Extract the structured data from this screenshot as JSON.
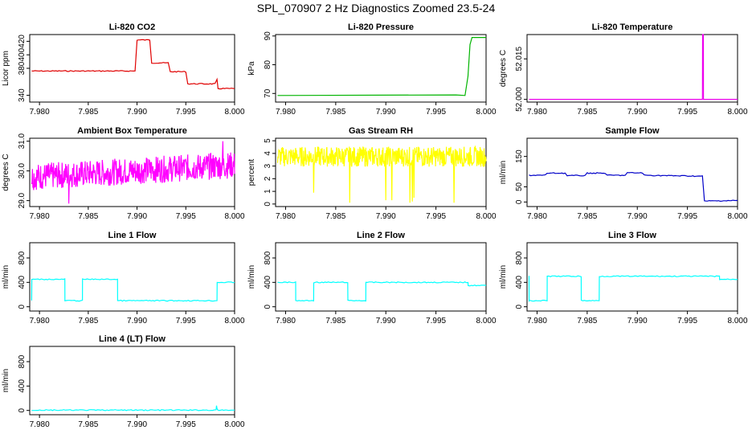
{
  "figure_title": "SPL_070907  2 Hz Diagnostics Zoomed 23.5-24",
  "colors": {
    "co2": "#e00000",
    "pressure": "#00b400",
    "temperature": "#ee00ee",
    "ambient": "#ff00ff",
    "rh": "#ffff00",
    "sample": "#0000c8",
    "lines": "#00ffff"
  },
  "chart_data": [
    {
      "type": "line",
      "title": "Li-820 CO2",
      "ylabel": "Licor ppm",
      "color": "#e00000",
      "xlim": [
        7.979,
        8.0
      ],
      "ylim": [
        330,
        430
      ],
      "xticks": [
        "7.980",
        "7.985",
        "7.990",
        "7.995",
        "8.000"
      ],
      "yticks": [
        "340",
        "380",
        "400",
        "420"
      ],
      "ytick_values": [
        340,
        380,
        400,
        420
      ],
      "series": [
        {
          "x": [
            7.9792,
            7.9898,
            7.99,
            7.9913,
            7.9915,
            7.9932,
            7.9934,
            7.995,
            7.9952,
            7.998,
            7.9981,
            7.9982,
            7.9983,
            8.0
          ],
          "y": [
            376,
            376,
            422,
            422,
            388,
            388,
            375,
            375,
            357,
            357,
            360,
            363,
            350,
            350
          ]
        }
      ]
    },
    {
      "type": "line",
      "title": "Li-820 Pressure",
      "ylabel": "kPa",
      "color": "#00b400",
      "xlim": [
        7.979,
        8.0
      ],
      "ylim": [
        67,
        90.5
      ],
      "xticks": [
        "7.980",
        "7.985",
        "7.990",
        "7.995",
        "8.000"
      ],
      "yticks": [
        "70",
        "80",
        "90"
      ],
      "ytick_values": [
        70,
        80,
        90
      ],
      "series": [
        {
          "x": [
            7.9792,
            7.997,
            7.9979,
            7.9982,
            7.9984,
            7.9986,
            8.0
          ],
          "y": [
            69.3,
            69.5,
            69.3,
            76,
            87,
            89.5,
            89.5
          ]
        }
      ]
    },
    {
      "type": "line",
      "title": "Li-820 Temperature",
      "ylabel": "degrees C",
      "color": "#ee00ee",
      "xlim": [
        7.979,
        8.0
      ],
      "ylim": [
        51.999,
        52.024
      ],
      "xticks": [
        "7.980",
        "7.985",
        "7.990",
        "7.995",
        "8.000"
      ],
      "yticks": [
        "52.000",
        "52.015"
      ],
      "ytick_values": [
        52.0,
        52.015
      ],
      "series": [
        {
          "x": [
            7.9792,
            7.9965,
            7.99651,
            7.99659,
            7.9966,
            8.0
          ],
          "y": [
            52.0,
            52.0,
            52.024,
            52.024,
            52.0,
            52.0
          ]
        }
      ]
    },
    {
      "type": "line",
      "title": "Ambient Box Temperature",
      "ylabel": "degrees C",
      "color": "#ff00ff",
      "xlim": [
        7.979,
        8.0
      ],
      "ylim": [
        28.8,
        31.1
      ],
      "xticks": [
        "7.980",
        "7.985",
        "7.990",
        "7.995",
        "8.000"
      ],
      "yticks": [
        "29.0",
        "30.0",
        "31.0"
      ],
      "ytick_values": [
        29.0,
        30.0,
        31.0
      ],
      "series": [
        {
          "x": [
            7.9792,
            7.985,
            7.99,
            7.995,
            8.0
          ],
          "y": [
            29.8,
            29.9,
            30.0,
            30.1,
            30.2
          ]
        }
      ]
    },
    {
      "type": "line",
      "title": "Gas Stream RH",
      "ylabel": "percent",
      "color": "#ffff00",
      "xlim": [
        7.979,
        8.0
      ],
      "ylim": [
        -0.2,
        5.2
      ],
      "xticks": [
        "7.980",
        "7.985",
        "7.990",
        "7.995",
        "8.000"
      ],
      "yticks": [
        "0",
        "1",
        "2",
        "3",
        "4",
        "5"
      ],
      "ytick_values": [
        0,
        1,
        2,
        3,
        4,
        5
      ],
      "series": [
        {
          "x": [
            7.9792,
            7.985,
            7.99,
            7.995,
            8.0
          ],
          "y": [
            3.7,
            3.7,
            3.7,
            3.7,
            3.8
          ]
        }
      ]
    },
    {
      "type": "line",
      "title": "Sample Flow",
      "ylabel": "ml/min",
      "color": "#0000c8",
      "xlim": [
        7.979,
        8.0
      ],
      "ylim": [
        -15,
        210
      ],
      "xticks": [
        "7.980",
        "7.985",
        "7.990",
        "7.995",
        "8.000"
      ],
      "yticks": [
        "0",
        "50",
        "150"
      ],
      "ytick_values": [
        0,
        50,
        150
      ],
      "series": [
        {
          "x": [
            7.9792,
            7.9808,
            7.981,
            7.9828,
            7.983,
            7.9848,
            7.985,
            7.9868,
            7.987,
            7.9888,
            7.989,
            7.9905,
            7.9907,
            7.9965,
            7.9967,
            8.0
          ],
          "y": [
            88,
            88,
            95,
            95,
            87,
            87,
            95,
            95,
            88,
            88,
            96,
            96,
            88,
            85,
            3,
            5
          ]
        }
      ]
    },
    {
      "type": "line",
      "title": "Line 1 Flow",
      "ylabel": "ml/min",
      "color": "#00ffff",
      "xlim": [
        7.979,
        8.0
      ],
      "ylim": [
        -70,
        1050
      ],
      "xticks": [
        "7.980",
        "7.985",
        "7.990",
        "7.995",
        "8.000"
      ],
      "yticks": [
        "0",
        "400",
        "800"
      ],
      "ytick_values": [
        0,
        400,
        800
      ],
      "series": [
        {
          "x": [
            7.9792,
            7.97921,
            7.9826,
            7.98261,
            7.9844,
            7.98441,
            7.988,
            7.98801,
            7.9982,
            7.99821,
            8.0
          ],
          "y": [
            100,
            450,
            450,
            100,
            100,
            450,
            450,
            100,
            100,
            400,
            400
          ]
        }
      ]
    },
    {
      "type": "line",
      "title": "Line 2 Flow",
      "ylabel": "ml/min",
      "color": "#00ffff",
      "xlim": [
        7.979,
        8.0
      ],
      "ylim": [
        -70,
        1050
      ],
      "xticks": [
        "7.980",
        "7.985",
        "7.990",
        "7.995",
        "8.000"
      ],
      "yticks": [
        "0",
        "400",
        "800"
      ],
      "ytick_values": [
        0,
        400,
        800
      ],
      "series": [
        {
          "x": [
            7.9792,
            7.981,
            7.98101,
            7.9828,
            7.98281,
            7.9862,
            7.98621,
            7.988,
            7.98801,
            7.9982,
            7.99821,
            8.0
          ],
          "y": [
            400,
            400,
            100,
            100,
            400,
            400,
            100,
            100,
            400,
            400,
            350,
            350
          ]
        }
      ]
    },
    {
      "type": "line",
      "title": "Line 3 Flow",
      "ylabel": "ml/min",
      "color": "#00ffff",
      "xlim": [
        7.979,
        8.0
      ],
      "ylim": [
        -70,
        1050
      ],
      "xticks": [
        "7.980",
        "7.985",
        "7.990",
        "7.995",
        "8.000"
      ],
      "yticks": [
        "0",
        "400",
        "800"
      ],
      "ytick_values": [
        0,
        400,
        800
      ],
      "series": [
        {
          "x": [
            7.9792,
            7.97921,
            7.97925,
            7.981,
            7.98101,
            7.9844,
            7.98441,
            7.9862,
            7.98621,
            7.9982,
            7.99821,
            8.0
          ],
          "y": [
            500,
            100,
            100,
            100,
            500,
            500,
            100,
            100,
            500,
            500,
            450,
            450
          ]
        }
      ]
    },
    {
      "type": "line",
      "title": "Line 4 (LT) Flow",
      "ylabel": "ml/min",
      "color": "#00ffff",
      "xlim": [
        7.979,
        8.0
      ],
      "ylim": [
        -70,
        1050
      ],
      "xticks": [
        "7.980",
        "7.985",
        "7.990",
        "7.995",
        "8.000"
      ],
      "yticks": [
        "0",
        "400",
        "800"
      ],
      "ytick_values": [
        0,
        400,
        800
      ],
      "series": [
        {
          "x": [
            7.9792,
            7.9981,
            7.99815,
            7.9982,
            7.99825,
            8.0
          ],
          "y": [
            5,
            5,
            80,
            25,
            5,
            5
          ]
        }
      ]
    }
  ]
}
